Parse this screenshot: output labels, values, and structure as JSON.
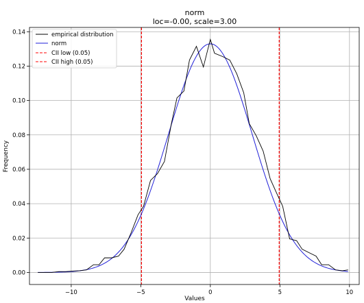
{
  "chart_data": {
    "type": "line",
    "title": "norm",
    "subtitle": "loc=-0.00, scale=3.00",
    "xlabel": "Values",
    "ylabel": "Frequency",
    "xlim": [
      -13,
      10.7
    ],
    "ylim": [
      -0.007,
      0.1425
    ],
    "x_ticks": [
      -10,
      -5,
      0,
      5,
      10
    ],
    "x_tick_labels": [
      "−10",
      "−5",
      "0",
      "5",
      "10"
    ],
    "y_ticks": [
      0.0,
      0.02,
      0.04,
      0.06,
      0.08,
      0.1,
      0.12,
      0.14
    ],
    "y_tick_labels": [
      "0.00",
      "0.02",
      "0.04",
      "0.06",
      "0.08",
      "0.10",
      "0.12",
      "0.14"
    ],
    "grid": true,
    "legend_position": "top-left",
    "series": [
      {
        "name": "empirical distribution",
        "color": "#000000",
        "x": [
          -12.4,
          -11.9,
          -11.4,
          -10.9,
          -10.4,
          -9.9,
          -9.4,
          -8.9,
          -8.4,
          -8.0,
          -7.6,
          -7.1,
          -6.6,
          -6.2,
          -5.7,
          -5.2,
          -4.8,
          -4.3,
          -3.8,
          -3.3,
          -2.8,
          -2.4,
          -1.9,
          -1.5,
          -1.0,
          -0.5,
          0.0,
          0.3,
          0.9,
          1.4,
          1.9,
          2.4,
          2.8,
          3.3,
          3.8,
          4.3,
          4.8,
          5.2,
          5.7,
          6.2,
          6.6,
          7.1,
          7.6,
          8.0,
          8.5,
          9.0,
          9.5,
          9.9
        ],
        "y": [
          0.0,
          0.0,
          0.0,
          0.0005,
          0.0005,
          0.0008,
          0.001,
          0.0015,
          0.0045,
          0.0045,
          0.0085,
          0.0085,
          0.0095,
          0.0135,
          0.023,
          0.0335,
          0.0385,
          0.0535,
          0.0575,
          0.0645,
          0.0865,
          0.1015,
          0.1055,
          0.1235,
          0.1315,
          0.1195,
          0.1355,
          0.1275,
          0.1255,
          0.1235,
          0.1155,
          0.1045,
          0.0865,
          0.0795,
          0.0705,
          0.0545,
          0.0455,
          0.0385,
          0.0195,
          0.0185,
          0.0135,
          0.0115,
          0.0095,
          0.0045,
          0.0045,
          0.0015,
          0.001,
          0.0015
        ]
      },
      {
        "name": "norm",
        "color": "#1f1fd8",
        "function": "normal_pdf",
        "loc": 0,
        "scale": 3,
        "x_range": [
          -12.4,
          9.9
        ]
      },
      {
        "name": "CII low (0.05)",
        "color": "#ff0000",
        "style": "dashed",
        "x_value": -4.95
      },
      {
        "name": "CII high (0.05)",
        "color": "#ff0000",
        "style": "dashed",
        "x_value": 4.95
      }
    ]
  }
}
